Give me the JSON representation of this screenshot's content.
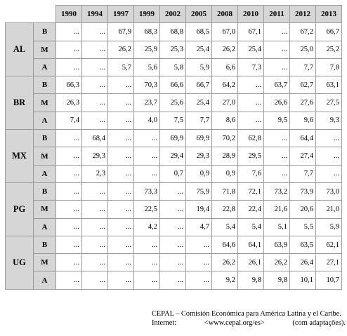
{
  "table": {
    "years": [
      "1990",
      "1994",
      "1997",
      "1999",
      "2002",
      "2005",
      "2008",
      "2010",
      "2011",
      "2012",
      "2013"
    ],
    "groups": [
      {
        "country": "AL",
        "rows": [
          {
            "level": "B",
            "values": [
              "...",
              "...",
              "67,9",
              "68,3",
              "68,8",
              "68,5",
              "67,0",
              "67,1",
              "...",
              "67,2",
              "66,7"
            ]
          },
          {
            "level": "M",
            "values": [
              "...",
              "...",
              "26,2",
              "25,9",
              "25,3",
              "25,4",
              "26,2",
              "25,4",
              "...",
              "25,0",
              "25,2"
            ]
          },
          {
            "level": "A",
            "values": [
              "...",
              "...",
              "5,7",
              "5,6",
              "5,8",
              "5,9",
              "6,6",
              "7,3",
              "...",
              "7,7",
              "7,8"
            ]
          }
        ]
      },
      {
        "country": "BR",
        "rows": [
          {
            "level": "B",
            "values": [
              "66,3",
              "...",
              "...",
              "70,3",
              "66,6",
              "66,7",
              "64,2",
              "...",
              "63,7",
              "62,7",
              "63,1"
            ]
          },
          {
            "level": "M",
            "values": [
              "26,3",
              "...",
              "...",
              "23,7",
              "25,6",
              "25,4",
              "27,0",
              "...",
              "26,6",
              "27,6",
              "27,5"
            ]
          },
          {
            "level": "A",
            "values": [
              "7,4",
              "...",
              "...",
              "4,0",
              "7,5",
              "7,7",
              "8,6",
              "...",
              "9,5",
              "9,6",
              "9,3"
            ]
          }
        ]
      },
      {
        "country": "MX",
        "rows": [
          {
            "level": "B",
            "values": [
              "...",
              "68,4",
              "...",
              "...",
              "69,9",
              "69,9",
              "70,2",
              "62,8",
              "...",
              "64,4",
              "..."
            ]
          },
          {
            "level": "M",
            "values": [
              "...",
              "29,3",
              "...",
              "...",
              "29,4",
              "29,3",
              "28,9",
              "29,5",
              "...",
              "27,4",
              "..."
            ]
          },
          {
            "level": "A",
            "values": [
              "...",
              "2,3",
              "...",
              "...",
              "0,7",
              "0,9",
              "0,9",
              "7,6",
              "...",
              "7,7",
              "..."
            ]
          }
        ]
      },
      {
        "country": "PG",
        "rows": [
          {
            "level": "B",
            "values": [
              "...",
              "...",
              "...",
              "73,3",
              "...",
              "75,9",
              "71,8",
              "72,1",
              "73,2",
              "73,9",
              "73,0"
            ]
          },
          {
            "level": "M",
            "values": [
              "...",
              "...",
              "...",
              "22,5",
              "...",
              "19,4",
              "22,8",
              "22,4",
              "21,6",
              "20,6",
              "21,0"
            ]
          },
          {
            "level": "A",
            "values": [
              "...",
              "...",
              "...",
              "4,2",
              "...",
              "4,7",
              "5,4",
              "5,4",
              "5,1",
              "5,5",
              "5,9"
            ]
          }
        ]
      },
      {
        "country": "UG",
        "rows": [
          {
            "level": "B",
            "values": [
              "...",
              "...",
              "...",
              "...",
              "...",
              "...",
              "64,6",
              "64,1",
              "63,9",
              "63,5",
              "62,1"
            ]
          },
          {
            "level": "M",
            "values": [
              "...",
              "...",
              "...",
              "...",
              "...",
              "...",
              "26,2",
              "26,1",
              "26,2",
              "26,4",
              "27,1"
            ]
          },
          {
            "level": "A",
            "values": [
              "...",
              "...",
              "...",
              "...",
              "...",
              "...",
              "9,2",
              "9,8",
              "9,8",
              "10,1",
              "10,7"
            ]
          }
        ]
      }
    ]
  },
  "source": {
    "line1": "CEPAL – Comisión Económica para América Latina y el Caribe.",
    "line2_label": "Internet:",
    "line2_url": "<www.cepal.org/es>",
    "line2_note": "(com adaptações)."
  }
}
